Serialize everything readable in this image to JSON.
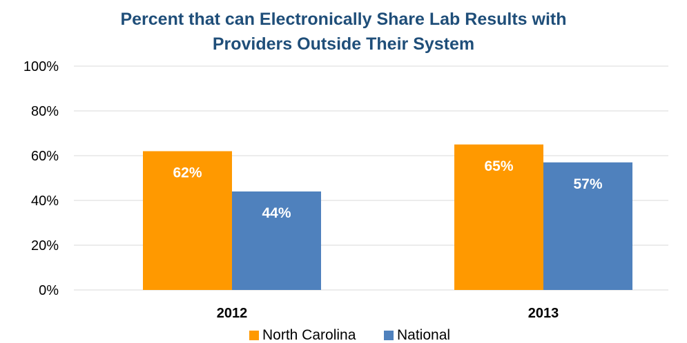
{
  "chart_data": {
    "type": "bar",
    "title_line1": "Percent that can Electronically Share Lab Results with",
    "title_line2": "Providers Outside Their System",
    "categories": [
      "2012",
      "2013"
    ],
    "series": [
      {
        "name": "North Carolina",
        "color": "#ff9900",
        "values": [
          62,
          65
        ],
        "labels": [
          "62%",
          "65%"
        ]
      },
      {
        "name": "National",
        "color": "#4f81bd",
        "values": [
          44,
          57
        ],
        "labels": [
          "44%",
          "57%"
        ]
      }
    ],
    "ylim": [
      0,
      100
    ],
    "yticks": [
      "0%",
      "20%",
      "40%",
      "60%",
      "80%",
      "100%"
    ],
    "ytick_values": [
      0,
      20,
      40,
      60,
      80,
      100
    ],
    "grid": true,
    "legend_position": "bottom"
  }
}
